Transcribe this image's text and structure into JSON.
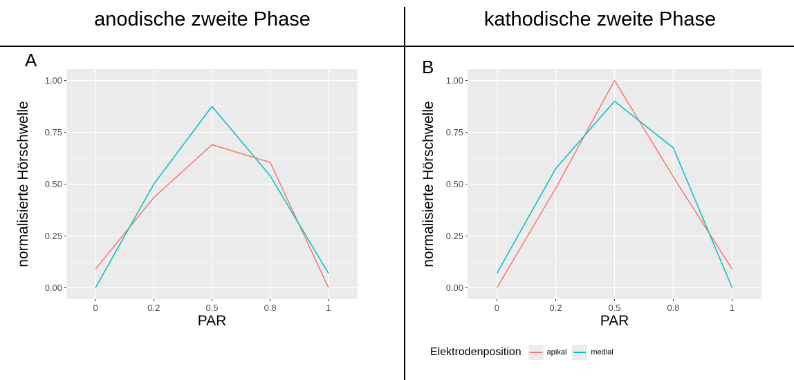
{
  "headers": {
    "left": "anodische zweite Phase",
    "right": "kathodische zweite Phase"
  },
  "colors": {
    "apikal": "#F8766D",
    "medial": "#00BFC4",
    "panel_bg": "#EBEBEB",
    "grid": "#FFFFFF"
  },
  "legend": {
    "title": "Elektrodenposition",
    "items": [
      "apikal",
      "medial"
    ]
  },
  "chart_data": [
    {
      "type": "line",
      "panel_label": "A",
      "xlabel": "PAR",
      "ylabel": "normalisierte Hörschwelle",
      "x_categories": [
        "0",
        "0.2",
        "0.5",
        "0.8",
        "1"
      ],
      "y_ticks": [
        "0.00",
        "0.25",
        "0.50",
        "0.75",
        "1.00"
      ],
      "ylim": [
        0,
        1
      ],
      "grid": true,
      "series": [
        {
          "name": "apikal",
          "values": [
            0.09,
            0.435,
            0.69,
            0.605,
            0.0
          ]
        },
        {
          "name": "medial",
          "values": [
            0.0,
            0.5,
            0.875,
            0.54,
            0.07
          ]
        }
      ]
    },
    {
      "type": "line",
      "panel_label": "B",
      "xlabel": "PAR",
      "ylabel": "normalisierte Hörschwelle",
      "x_categories": [
        "0",
        "0.2",
        "0.5",
        "0.8",
        "1"
      ],
      "y_ticks": [
        "0.00",
        "0.25",
        "0.50",
        "0.75",
        "1.00"
      ],
      "ylim": [
        0,
        1
      ],
      "grid": true,
      "series": [
        {
          "name": "apikal",
          "values": [
            0.0,
            0.48,
            1.0,
            0.535,
            0.09
          ]
        },
        {
          "name": "medial",
          "values": [
            0.07,
            0.575,
            0.9,
            0.675,
            0.0
          ]
        }
      ]
    }
  ]
}
